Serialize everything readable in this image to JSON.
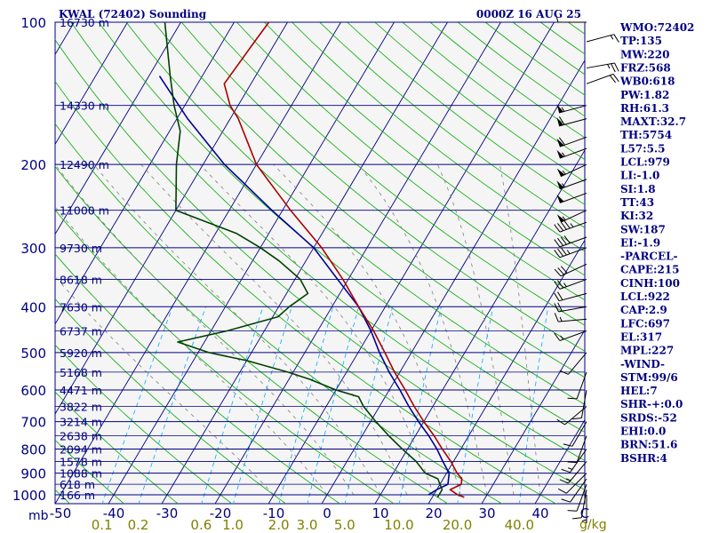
{
  "chart_data": {
    "type": "skew-t",
    "title": "KWAL (72402) Sounding",
    "timestamp": "0000Z 16 AUG 25",
    "pressure_axis_unit": "mb",
    "temperature_axis_unit": "C",
    "mixing_ratio_unit": "g/kg",
    "pressure_ticks": [
      "100",
      "200",
      "300",
      "400",
      "500",
      "600",
      "700",
      "800",
      "900",
      "1000"
    ],
    "temperature_ticks": [
      "-50",
      "-40",
      "-30",
      "-20",
      "-10",
      "0",
      "10",
      "20",
      "30",
      "40",
      "C"
    ],
    "mixing_ratio_ticks": [
      "0.1",
      "0.2",
      "0.6",
      "1.0",
      "2.0",
      "3.0",
      "5.0",
      "10.0",
      "20.0",
      "40.0"
    ],
    "height_labels": [
      {
        "p": 100,
        "label": "16730 m"
      },
      {
        "p": 150,
        "label": "14330 m"
      },
      {
        "p": 200,
        "label": "12490 m"
      },
      {
        "p": 250,
        "label": "11000 m"
      },
      {
        "p": 300,
        "label": "9730 m"
      },
      {
        "p": 350,
        "label": "8618 m"
      },
      {
        "p": 400,
        "label": "7630 m"
      },
      {
        "p": 450,
        "label": "6737 m"
      },
      {
        "p": 500,
        "label": "5920 m"
      },
      {
        "p": 550,
        "label": "5168 m"
      },
      {
        "p": 600,
        "label": "4471 m"
      },
      {
        "p": 650,
        "label": "3822 m"
      },
      {
        "p": 700,
        "label": "3214 m"
      },
      {
        "p": 750,
        "label": "2638 m"
      },
      {
        "p": 800,
        "label": "2094 m"
      },
      {
        "p": 850,
        "label": "1578 m"
      },
      {
        "p": 900,
        "label": "1088 m"
      },
      {
        "p": 950,
        "label": "618 m"
      },
      {
        "p": 1000,
        "label": "166 m"
      }
    ],
    "temperature_profile": [
      {
        "p": 1012,
        "t": 26
      },
      {
        "p": 1000,
        "t": 24.5
      },
      {
        "p": 975,
        "t": 22.5
      },
      {
        "p": 950,
        "t": 24
      },
      {
        "p": 925,
        "t": 23.5
      },
      {
        "p": 900,
        "t": 22
      },
      {
        "p": 850,
        "t": 19.5
      },
      {
        "p": 800,
        "t": 16.5
      },
      {
        "p": 750,
        "t": 13.5
      },
      {
        "p": 700,
        "t": 10
      },
      {
        "p": 650,
        "t": 6.5
      },
      {
        "p": 600,
        "t": 3
      },
      {
        "p": 550,
        "t": -1
      },
      {
        "p": 500,
        "t": -5
      },
      {
        "p": 450,
        "t": -9.5
      },
      {
        "p": 400,
        "t": -15
      },
      {
        "p": 350,
        "t": -21
      },
      {
        "p": 300,
        "t": -28.5
      },
      {
        "p": 250,
        "t": -38.5
      },
      {
        "p": 200,
        "t": -50
      },
      {
        "p": 160,
        "t": -58.5
      },
      {
        "p": 150,
        "t": -61.5
      },
      {
        "p": 135,
        "t": -65
      },
      {
        "p": 110,
        "t": -64
      },
      {
        "p": 100,
        "t": -63.5
      }
    ],
    "dewpoint_profile": [
      {
        "p": 1012,
        "td": 21
      },
      {
        "p": 1000,
        "td": 21
      },
      {
        "p": 975,
        "td": 21
      },
      {
        "p": 950,
        "td": 20
      },
      {
        "p": 925,
        "td": 19
      },
      {
        "p": 900,
        "td": 16
      },
      {
        "p": 850,
        "td": 13
      },
      {
        "p": 800,
        "td": 9
      },
      {
        "p": 750,
        "td": 5
      },
      {
        "p": 700,
        "td": 1
      },
      {
        "p": 650,
        "td": -3
      },
      {
        "p": 620,
        "td": -5
      },
      {
        "p": 600,
        "td": -10
      },
      {
        "p": 570,
        "td": -16
      },
      {
        "p": 550,
        "td": -21
      },
      {
        "p": 520,
        "td": -30
      },
      {
        "p": 500,
        "td": -38
      },
      {
        "p": 475,
        "td": -45
      },
      {
        "p": 450,
        "td": -37
      },
      {
        "p": 420,
        "td": -29
      },
      {
        "p": 400,
        "td": -28
      },
      {
        "p": 375,
        "td": -26
      },
      {
        "p": 350,
        "td": -29
      },
      {
        "p": 320,
        "td": -35
      },
      {
        "p": 300,
        "td": -40
      },
      {
        "p": 280,
        "td": -46
      },
      {
        "p": 250,
        "td": -60
      },
      {
        "p": 200,
        "td": -65
      },
      {
        "p": 170,
        "td": -68
      },
      {
        "p": 150,
        "td": -72
      },
      {
        "p": 130,
        "td": -76
      },
      {
        "p": 100,
        "td": -83
      }
    ],
    "parcel_profile": [
      {
        "p": 1000,
        "t": 19
      },
      {
        "p": 975,
        "t": 20
      },
      {
        "p": 950,
        "t": 21.5
      },
      {
        "p": 900,
        "t": 20.5
      },
      {
        "p": 850,
        "t": 18
      },
      {
        "p": 800,
        "t": 15.5
      },
      {
        "p": 750,
        "t": 12.5
      },
      {
        "p": 700,
        "t": 9
      },
      {
        "p": 650,
        "t": 5.5
      },
      {
        "p": 600,
        "t": 2
      },
      {
        "p": 550,
        "t": -2
      },
      {
        "p": 500,
        "t": -6
      },
      {
        "p": 450,
        "t": -10
      },
      {
        "p": 400,
        "t": -15
      },
      {
        "p": 350,
        "t": -22
      },
      {
        "p": 300,
        "t": -30
      },
      {
        "p": 250,
        "t": -42
      },
      {
        "p": 200,
        "t": -56
      },
      {
        "p": 160,
        "t": -68
      },
      {
        "p": 130,
        "t": -78
      }
    ],
    "series": [
      {
        "name": "temperature",
        "color": "#aa0000"
      },
      {
        "name": "dewpoint",
        "color": "#004000"
      },
      {
        "name": "parcel",
        "color": "#000099"
      }
    ],
    "wind_barbs": [
      {
        "p": 100,
        "dir": 270,
        "spd": 10
      },
      {
        "p": 110,
        "dir": 75,
        "spd": 15
      },
      {
        "p": 125,
        "dir": 80,
        "spd": 25
      },
      {
        "p": 135,
        "dir": 70,
        "spd": 20
      },
      {
        "p": 150,
        "dir": 255,
        "spd": 55
      },
      {
        "p": 160,
        "dir": 255,
        "spd": 60
      },
      {
        "p": 175,
        "dir": 250,
        "spd": 60
      },
      {
        "p": 185,
        "dir": 250,
        "spd": 55
      },
      {
        "p": 200,
        "dir": 245,
        "spd": 55
      },
      {
        "p": 215,
        "dir": 250,
        "spd": 55
      },
      {
        "p": 230,
        "dir": 250,
        "spd": 50
      },
      {
        "p": 250,
        "dir": 245,
        "spd": 55
      },
      {
        "p": 265,
        "dir": 250,
        "spd": 45
      },
      {
        "p": 285,
        "dir": 250,
        "spd": 40
      },
      {
        "p": 300,
        "dir": 250,
        "spd": 35
      },
      {
        "p": 325,
        "dir": 245,
        "spd": 30
      },
      {
        "p": 350,
        "dir": 250,
        "spd": 25
      },
      {
        "p": 375,
        "dir": 255,
        "spd": 20
      },
      {
        "p": 400,
        "dir": 260,
        "spd": 20
      },
      {
        "p": 425,
        "dir": 265,
        "spd": 15
      },
      {
        "p": 450,
        "dir": 250,
        "spd": 15
      },
      {
        "p": 500,
        "dir": 220,
        "spd": 10
      },
      {
        "p": 550,
        "dir": 200,
        "spd": 10
      },
      {
        "p": 600,
        "dir": 190,
        "spd": 10
      },
      {
        "p": 650,
        "dir": 230,
        "spd": 10
      },
      {
        "p": 700,
        "dir": 210,
        "spd": 10
      },
      {
        "p": 750,
        "dir": 200,
        "spd": 10
      },
      {
        "p": 800,
        "dir": 215,
        "spd": 15
      },
      {
        "p": 850,
        "dir": 220,
        "spd": 15
      },
      {
        "p": 900,
        "dir": 225,
        "spd": 10
      },
      {
        "p": 925,
        "dir": 215,
        "spd": 10
      },
      {
        "p": 950,
        "dir": 200,
        "spd": 10
      },
      {
        "p": 975,
        "dir": 190,
        "spd": 10
      },
      {
        "p": 1000,
        "dir": 180,
        "spd": 5
      }
    ],
    "indices": [
      "WMO:72402",
      "TP:135",
      "MW:220",
      "FRZ:568",
      "WB0:618",
      "PW:1.82",
      "RH:61.3",
      "MAXT:32.7",
      "TH:5754",
      "L57:5.5",
      "LCL:979",
      "LI:-1.0",
      "SI:1.8",
      "TT:43",
      "KI:32",
      "SW:187",
      "EI:-1.9",
      "-PARCEL-",
      "CAPE:215",
      "CINH:100",
      "LCL:922",
      "CAP:2.9",
      "LFC:697",
      "EL:317",
      "MPL:227",
      "-WIND-",
      "STM:99/6",
      "HEL:7",
      "SHR-+:0.0",
      "SRDS:-52",
      "EHI:0.0",
      "BRN:51.6",
      "BSHR:4"
    ],
    "colors": {
      "isobar": "#000080",
      "isotherm": "#000080",
      "dry_adiabat": "#00aa00",
      "moist_adiabat": "#808080",
      "mixing_ratio": "#00aaff",
      "label_navy": "#000080",
      "label_olive": "#808000",
      "background": "#f5f5f5"
    },
    "p_range": [
      100,
      1050
    ],
    "t_range": [
      -50,
      50
    ],
    "grid": true
  }
}
